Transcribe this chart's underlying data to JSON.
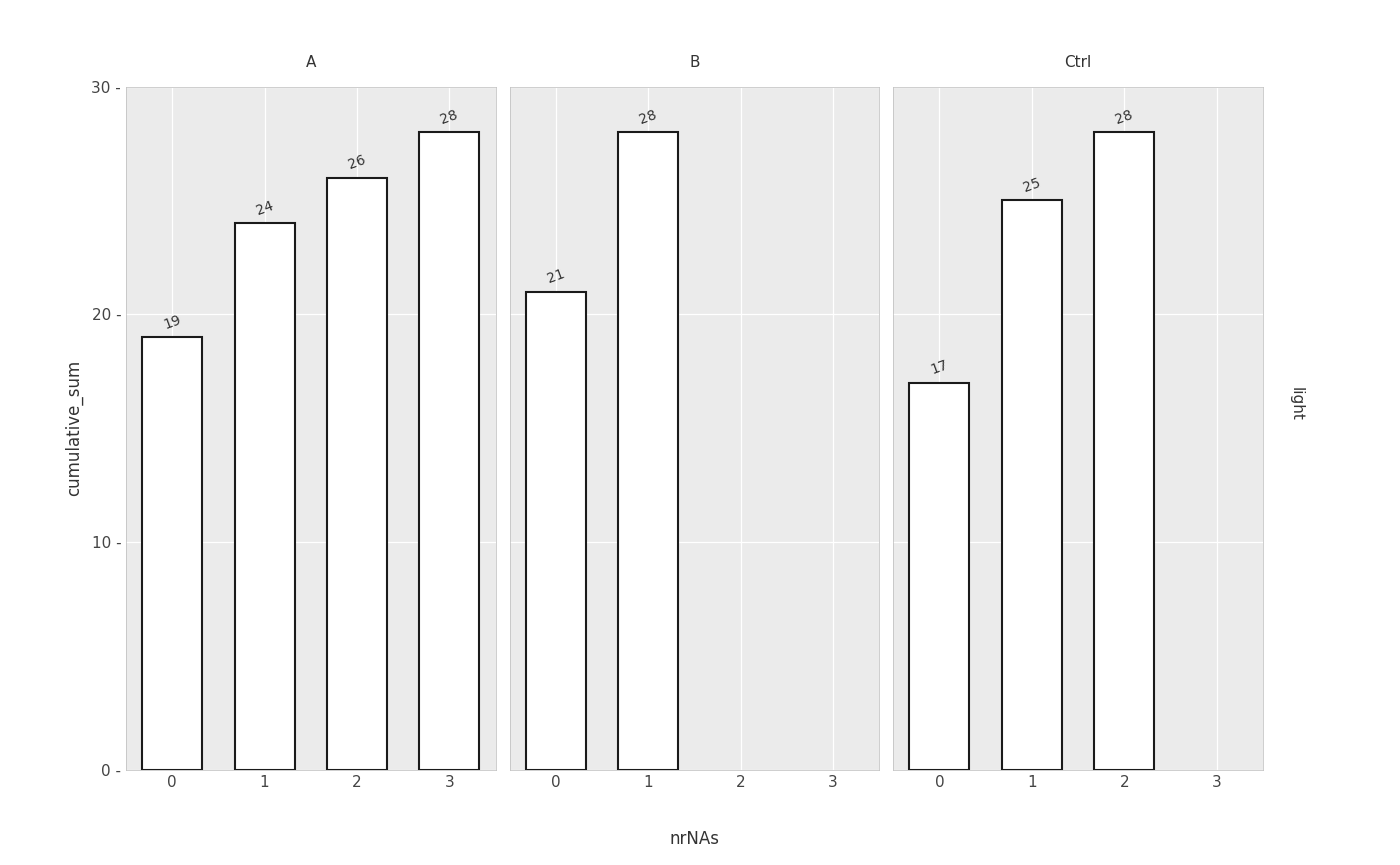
{
  "facets": [
    "A",
    "B",
    "Ctrl"
  ],
  "x_labels": [
    0,
    1,
    2,
    3
  ],
  "data": {
    "A": {
      "x": [
        0,
        1,
        2,
        3
      ],
      "y": [
        19,
        24,
        26,
        28
      ]
    },
    "B": {
      "x": [
        0,
        1
      ],
      "y": [
        21,
        28
      ]
    },
    "Ctrl": {
      "x": [
        0,
        1,
        2
      ],
      "y": [
        17,
        25,
        28
      ]
    }
  },
  "xlabel": "nrNAs",
  "ylabel": "cumulative_sum",
  "ylim": [
    0,
    30
  ],
  "yticks": [
    0,
    10,
    20,
    30
  ],
  "xticks": [
    0,
    1,
    2,
    3
  ],
  "right_label": "light",
  "bar_color": "#FFFFFF",
  "bar_edge_color": "#1a1a1a",
  "fig_bg_color": "#FFFFFF",
  "panel_bg_color": "#EBEBEB",
  "strip_bg_color": "#D9D9D9",
  "right_strip_bg": "#D0D0D0",
  "grid_color": "#FFFFFF",
  "outer_bg_color": "#FFFFFF",
  "tick_label_color": "#444444",
  "axis_label_color": "#333333",
  "strip_text_color": "#333333",
  "facet_font_size": 11,
  "axis_font_size": 11,
  "label_font_size": 12,
  "bar_label_font_size": 10,
  "bar_width": 0.65,
  "bar_linewidth": 1.5
}
